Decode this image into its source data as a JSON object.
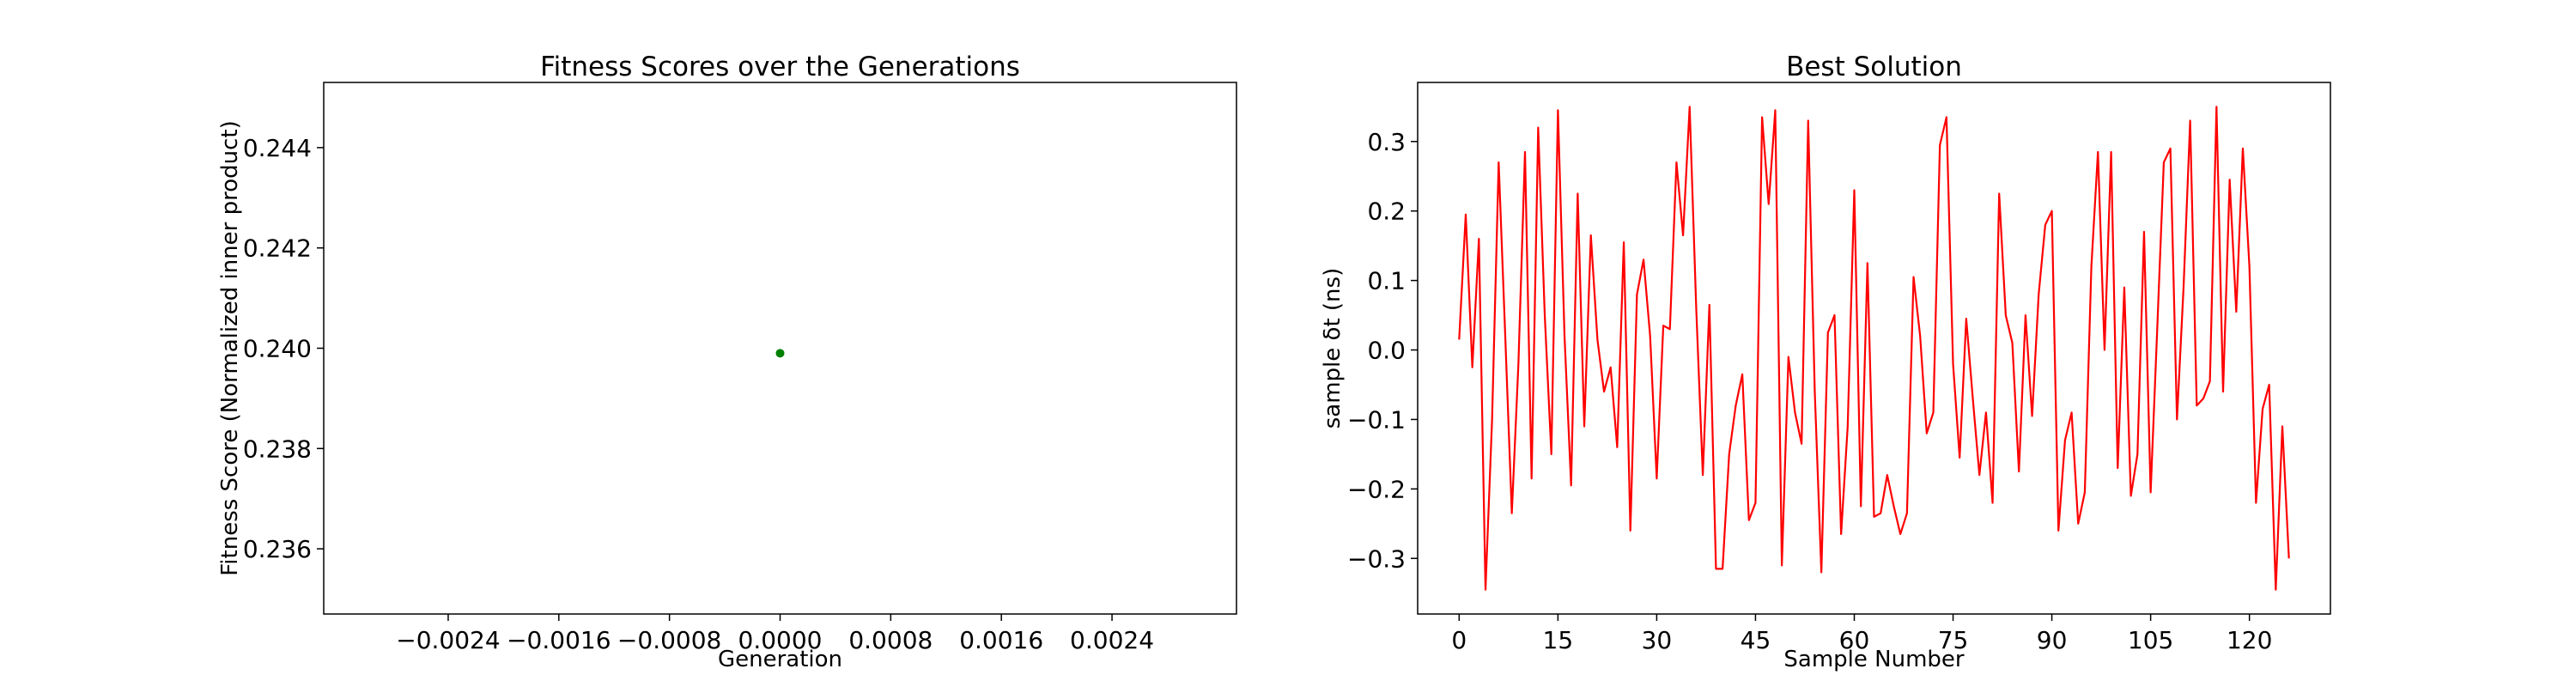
{
  "chart_data": [
    {
      "type": "scatter",
      "title": "Fitness Scores over the Generations",
      "xlabel": "Generation",
      "ylabel": "Fitness Score (Normalized inner product)",
      "xlim": [
        -0.0033,
        0.0033
      ],
      "ylim": [
        0.2347,
        0.2453
      ],
      "xticks": [
        -0.0024,
        -0.0016,
        -0.0008,
        0.0,
        0.0008,
        0.0016,
        0.0024
      ],
      "xtick_labels": [
        "−0.0024",
        "−0.0016",
        "−0.0008",
        "0.0000",
        "0.0008",
        "0.0016",
        "0.0024"
      ],
      "yticks": [
        0.236,
        0.238,
        0.24,
        0.242,
        0.244
      ],
      "ytick_labels": [
        "0.236",
        "0.238",
        "0.240",
        "0.242",
        "0.244"
      ],
      "color": "#008000",
      "grid": false,
      "series": [
        {
          "x": [
            0
          ],
          "y": [
            0.2399
          ]
        }
      ]
    },
    {
      "type": "line",
      "title": "Best Solution",
      "xlabel": "Sample Number",
      "ylabel": "sample δt (ns)",
      "xlim": [
        -6.3,
        132.3
      ],
      "ylim": [
        -0.38,
        0.385
      ],
      "xticks": [
        0,
        15,
        30,
        45,
        60,
        75,
        90,
        105,
        120
      ],
      "xtick_labels": [
        "0",
        "15",
        "30",
        "45",
        "60",
        "75",
        "90",
        "105",
        "120"
      ],
      "yticks": [
        -0.3,
        -0.2,
        -0.1,
        0.0,
        0.1,
        0.2,
        0.3
      ],
      "ytick_labels": [
        "−0.3",
        "−0.2",
        "−0.1",
        "0.0",
        "0.1",
        "0.2",
        "0.3"
      ],
      "color": "#ff0000",
      "grid": false,
      "series": [
        {
          "values": [
            0.015,
            0.195,
            -0.025,
            0.16,
            -0.345,
            -0.1,
            0.27,
            0.02,
            -0.235,
            -0.02,
            0.285,
            -0.185,
            0.32,
            0.05,
            -0.15,
            0.345,
            0.02,
            -0.195,
            0.225,
            -0.11,
            0.165,
            0.015,
            -0.06,
            -0.025,
            -0.14,
            0.155,
            -0.26,
            0.08,
            0.13,
            0.02,
            -0.185,
            0.035,
            0.03,
            0.27,
            0.165,
            0.35,
            0.06,
            -0.18,
            0.065,
            -0.315,
            -0.315,
            -0.15,
            -0.08,
            -0.035,
            -0.245,
            -0.22,
            0.335,
            0.21,
            0.345,
            -0.31,
            -0.01,
            -0.09,
            -0.135,
            0.33,
            -0.06,
            -0.32,
            0.025,
            0.05,
            -0.265,
            -0.11,
            0.23,
            -0.225,
            0.125,
            -0.24,
            -0.235,
            -0.18,
            -0.225,
            -0.265,
            -0.235,
            0.105,
            0.02,
            -0.12,
            -0.09,
            0.295,
            0.335,
            -0.02,
            -0.155,
            0.045,
            -0.07,
            -0.18,
            -0.09,
            -0.22,
            0.225,
            0.05,
            0.01,
            -0.175,
            0.05,
            -0.095,
            0.08,
            0.18,
            0.2,
            -0.26,
            -0.13,
            -0.09,
            -0.25,
            -0.205,
            0.12,
            0.285,
            0.0,
            0.285,
            -0.17,
            0.09,
            -0.21,
            -0.15,
            0.17,
            -0.205,
            0.03,
            0.27,
            0.29,
            -0.1,
            0.09,
            0.33,
            -0.08,
            -0.07,
            -0.045,
            0.35,
            -0.06,
            0.245,
            0.055,
            0.29,
            0.12,
            -0.22,
            -0.085,
            -0.05,
            -0.345,
            -0.11,
            -0.3
          ]
        }
      ]
    }
  ]
}
